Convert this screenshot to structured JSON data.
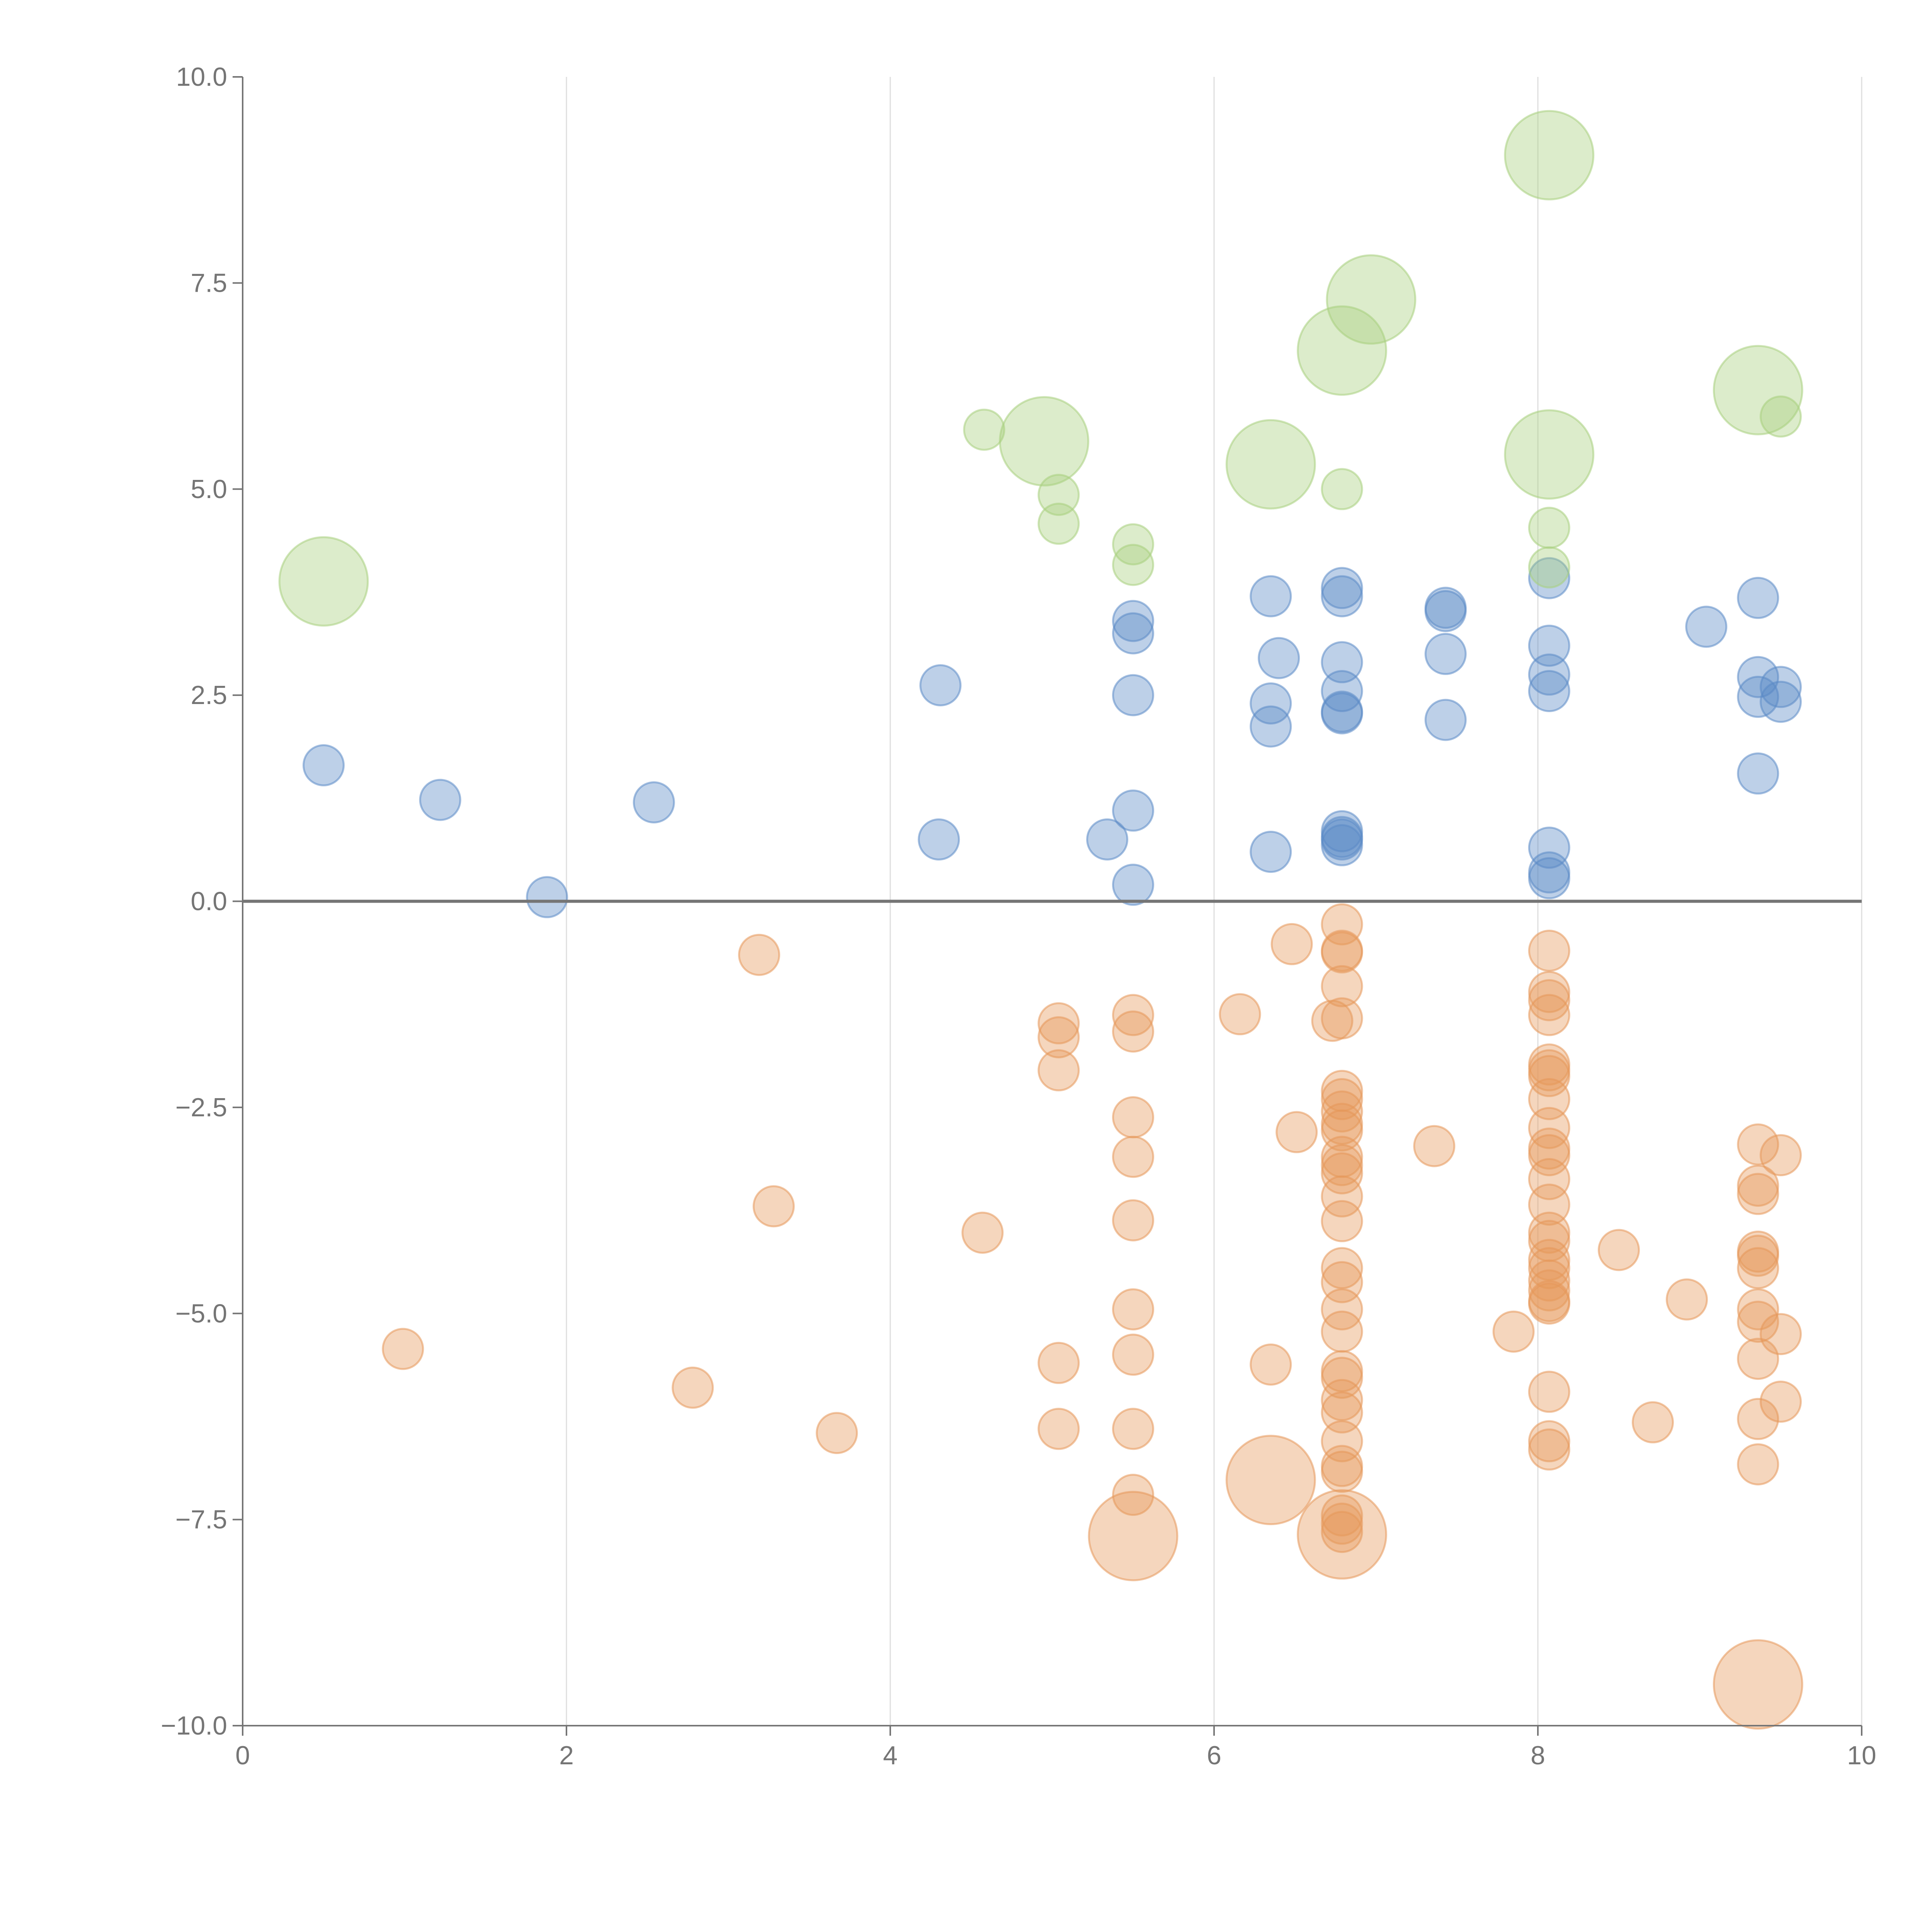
{
  "chart_data": {
    "type": "scatter",
    "title": "",
    "xlabel": "",
    "ylabel": "",
    "xlim": [
      0,
      10
    ],
    "ylim": [
      -10,
      10
    ],
    "xticks": [
      0,
      2,
      4,
      6,
      8,
      10
    ],
    "xtick_labels": [
      "0",
      "2",
      "4",
      "6",
      "8",
      "10"
    ],
    "yticks": [
      -10,
      -7.5,
      -5,
      -2.5,
      0,
      2.5,
      5,
      7.5,
      10
    ],
    "ytick_labels": [
      "−10.0",
      "−7.5",
      "−5.0",
      "−2.5",
      "0.0",
      "2.5",
      "5.0",
      "7.5",
      "10.0"
    ],
    "vertical_grid": true,
    "zero_line": true,
    "legend": "none",
    "series": [
      {
        "color": "#5b8ac6",
        "points": [
          [
            0.5,
            1.65,
            1
          ],
          [
            1.22,
            1.23,
            1
          ],
          [
            1.88,
            0.05,
            1
          ],
          [
            2.54,
            1.2,
            1
          ],
          [
            4.31,
            2.62,
            1
          ],
          [
            4.3,
            0.75,
            1
          ],
          [
            5.34,
            0.75,
            1
          ],
          [
            5.5,
            3.4,
            1
          ],
          [
            5.5,
            3.25,
            1
          ],
          [
            5.5,
            2.5,
            1
          ],
          [
            5.5,
            1.1,
            1
          ],
          [
            5.5,
            0.2,
            1
          ],
          [
            6.35,
            3.7,
            1
          ],
          [
            6.4,
            2.95,
            1
          ],
          [
            6.35,
            2.4,
            1
          ],
          [
            6.35,
            2.12,
            1
          ],
          [
            6.35,
            0.6,
            1
          ],
          [
            6.79,
            3.8,
            1
          ],
          [
            6.79,
            3.7,
            1
          ],
          [
            6.79,
            2.9,
            1
          ],
          [
            6.79,
            2.55,
            1
          ],
          [
            6.79,
            2.3,
            1
          ],
          [
            6.79,
            2.28,
            1
          ],
          [
            6.79,
            0.85,
            1
          ],
          [
            6.79,
            0.78,
            1
          ],
          [
            6.79,
            0.75,
            1
          ],
          [
            6.79,
            0.68,
            1
          ],
          [
            7.43,
            3.56,
            1
          ],
          [
            7.43,
            3.52,
            1
          ],
          [
            7.43,
            3.0,
            1
          ],
          [
            7.43,
            2.2,
            1
          ],
          [
            8.07,
            3.92,
            1
          ],
          [
            8.07,
            3.1,
            1
          ],
          [
            8.07,
            2.75,
            1
          ],
          [
            8.07,
            2.55,
            1
          ],
          [
            8.07,
            0.65,
            1
          ],
          [
            8.07,
            0.35,
            1
          ],
          [
            8.07,
            0.28,
            1
          ],
          [
            9.04,
            3.33,
            1
          ],
          [
            9.36,
            3.68,
            1
          ],
          [
            9.36,
            2.72,
            1
          ],
          [
            9.36,
            2.48,
            1
          ],
          [
            9.36,
            1.55,
            1
          ],
          [
            9.5,
            2.6,
            1
          ],
          [
            9.5,
            2.42,
            1
          ]
        ]
      },
      {
        "color": "#e59859",
        "points": [
          [
            3.19,
            -0.65,
            1
          ],
          [
            3.28,
            -3.7,
            1
          ],
          [
            0.99,
            -5.43,
            1
          ],
          [
            2.78,
            -5.9,
            1
          ],
          [
            3.67,
            -6.45,
            1
          ],
          [
            4.57,
            -4.02,
            1
          ],
          [
            5.04,
            -1.48,
            1
          ],
          [
            5.04,
            -1.65,
            1
          ],
          [
            5.04,
            -2.05,
            1
          ],
          [
            5.04,
            -5.6,
            1
          ],
          [
            5.04,
            -6.4,
            1
          ],
          [
            5.5,
            -1.38,
            1
          ],
          [
            5.5,
            -1.58,
            1
          ],
          [
            5.5,
            -2.62,
            1
          ],
          [
            5.5,
            -3.1,
            1
          ],
          [
            5.5,
            -3.87,
            1
          ],
          [
            5.5,
            -4.95,
            1
          ],
          [
            5.5,
            -5.5,
            1
          ],
          [
            5.5,
            -6.4,
            1
          ],
          [
            5.5,
            -7.2,
            1
          ],
          [
            5.5,
            -7.7,
            2.2
          ],
          [
            6.16,
            -1.37,
            1
          ],
          [
            6.48,
            -0.52,
            1
          ],
          [
            6.51,
            -2.8,
            1
          ],
          [
            6.35,
            -5.62,
            1
          ],
          [
            6.35,
            -7.02,
            2.2
          ],
          [
            6.73,
            -1.45,
            1
          ],
          [
            6.79,
            -0.28,
            1
          ],
          [
            6.79,
            -0.6,
            1
          ],
          [
            6.79,
            -0.62,
            1
          ],
          [
            6.79,
            -1.03,
            1
          ],
          [
            6.79,
            -1.42,
            1
          ],
          [
            6.79,
            -2.3,
            1
          ],
          [
            6.79,
            -2.4,
            1
          ],
          [
            6.79,
            -2.55,
            1
          ],
          [
            6.79,
            -2.7,
            1
          ],
          [
            6.79,
            -2.78,
            1
          ],
          [
            6.79,
            -3.1,
            1
          ],
          [
            6.79,
            -3.2,
            1
          ],
          [
            6.79,
            -3.3,
            1
          ],
          [
            6.79,
            -3.58,
            1
          ],
          [
            6.79,
            -3.88,
            1
          ],
          [
            6.79,
            -4.45,
            1
          ],
          [
            6.79,
            -4.62,
            1
          ],
          [
            6.79,
            -4.95,
            1
          ],
          [
            6.79,
            -5.22,
            1
          ],
          [
            6.79,
            -5.7,
            1
          ],
          [
            6.79,
            -5.78,
            1
          ],
          [
            6.79,
            -6.05,
            1
          ],
          [
            6.79,
            -6.2,
            1
          ],
          [
            6.79,
            -6.55,
            1
          ],
          [
            6.79,
            -6.85,
            1
          ],
          [
            6.79,
            -6.92,
            1
          ],
          [
            6.79,
            -7.45,
            1
          ],
          [
            6.79,
            -7.55,
            1
          ],
          [
            6.79,
            -7.65,
            1
          ],
          [
            6.79,
            -7.68,
            2.2
          ],
          [
            7.36,
            -2.97,
            1
          ],
          [
            7.85,
            -5.22,
            1
          ],
          [
            8.07,
            -0.6,
            1
          ],
          [
            8.07,
            -1.1,
            1
          ],
          [
            8.07,
            -1.2,
            1
          ],
          [
            8.07,
            -1.38,
            1
          ],
          [
            8.07,
            -1.98,
            1
          ],
          [
            8.07,
            -2.05,
            1
          ],
          [
            8.07,
            -2.12,
            1
          ],
          [
            8.07,
            -2.4,
            1
          ],
          [
            8.07,
            -2.75,
            1
          ],
          [
            8.07,
            -3.0,
            1
          ],
          [
            8.07,
            -3.08,
            1
          ],
          [
            8.07,
            -3.37,
            1
          ],
          [
            8.07,
            -3.68,
            1
          ],
          [
            8.07,
            -4.02,
            1
          ],
          [
            8.07,
            -4.12,
            1
          ],
          [
            8.07,
            -4.35,
            1
          ],
          [
            8.07,
            -4.45,
            1
          ],
          [
            8.07,
            -4.6,
            1
          ],
          [
            8.07,
            -4.72,
            1
          ],
          [
            8.07,
            -4.85,
            1
          ],
          [
            8.07,
            -4.88,
            1
          ],
          [
            8.07,
            -5.95,
            1
          ],
          [
            8.07,
            -6.55,
            1
          ],
          [
            8.07,
            -6.65,
            1
          ],
          [
            8.5,
            -4.23,
            1
          ],
          [
            8.71,
            -6.32,
            1
          ],
          [
            8.92,
            -4.83,
            1
          ],
          [
            9.36,
            -2.95,
            1
          ],
          [
            9.36,
            -3.45,
            1
          ],
          [
            9.36,
            -3.55,
            1
          ],
          [
            9.36,
            -4.25,
            1
          ],
          [
            9.36,
            -4.3,
            1
          ],
          [
            9.36,
            -4.45,
            1
          ],
          [
            9.36,
            -4.95,
            1
          ],
          [
            9.36,
            -5.1,
            1
          ],
          [
            9.36,
            -5.55,
            1
          ],
          [
            9.36,
            -6.28,
            1
          ],
          [
            9.36,
            -6.83,
            1
          ],
          [
            9.36,
            -9.5,
            2.2
          ],
          [
            9.5,
            -3.08,
            1
          ],
          [
            9.5,
            -5.25,
            1
          ],
          [
            9.5,
            -6.07,
            1
          ]
        ]
      },
      {
        "color": "#a8cf7e",
        "points": [
          [
            0.5,
            3.88,
            2.2
          ],
          [
            4.58,
            5.72,
            1
          ],
          [
            4.95,
            5.58,
            2.2
          ],
          [
            5.04,
            4.93,
            1
          ],
          [
            5.04,
            4.58,
            1
          ],
          [
            5.5,
            4.33,
            1
          ],
          [
            5.5,
            4.08,
            1
          ],
          [
            6.35,
            5.3,
            2.2
          ],
          [
            6.79,
            6.68,
            2.2
          ],
          [
            6.79,
            5.0,
            1
          ],
          [
            6.97,
            7.3,
            2.2
          ],
          [
            8.07,
            9.05,
            2.2
          ],
          [
            8.07,
            5.42,
            2.2
          ],
          [
            8.07,
            4.53,
            1
          ],
          [
            8.07,
            4.05,
            1
          ],
          [
            9.36,
            6.2,
            2.2
          ],
          [
            9.5,
            5.88,
            1
          ]
        ]
      }
    ]
  }
}
